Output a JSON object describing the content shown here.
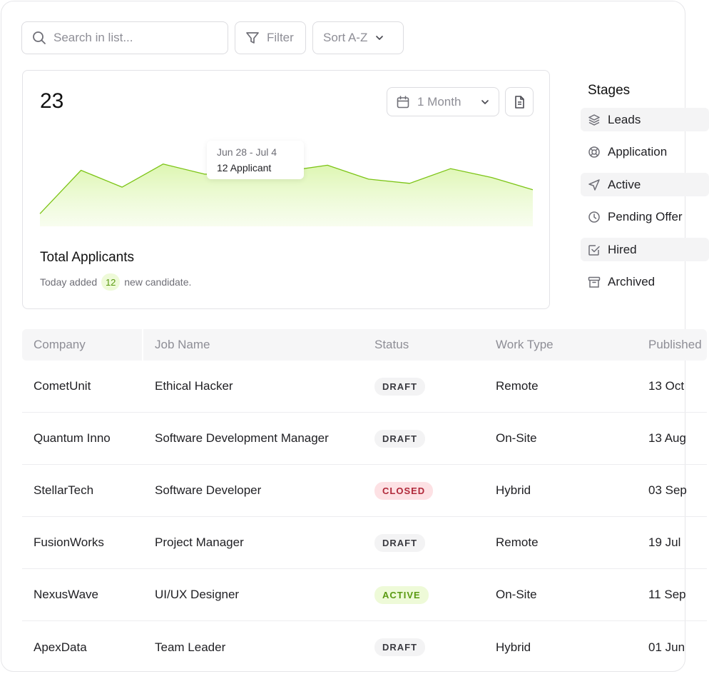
{
  "toolbar": {
    "search_placeholder": "Search in list...",
    "filter_label": "Filter",
    "sort_label": "Sort A-Z"
  },
  "summary": {
    "total": "23",
    "range_label": "1 Month",
    "tooltip_date": "Jun 28 - Jul 4",
    "tooltip_value": "12 Applicant",
    "title": "Total Applicants",
    "sub_prefix": "Today added",
    "sub_count": "12",
    "sub_suffix": "new candidate."
  },
  "chart_data": {
    "type": "area",
    "title": "Total Applicants",
    "series": [
      {
        "name": "Applicants",
        "values": [
          3,
          13.3,
          9.3,
          14.8,
          12.4,
          12.1,
          13.1,
          14.5,
          11.2,
          10.2,
          13.7,
          11.6,
          8.7
        ]
      }
    ],
    "x": [
      0,
      1,
      2,
      3,
      4,
      5,
      6,
      7,
      8,
      9,
      10,
      11,
      12
    ],
    "highlight_index": 5,
    "ylim": [
      0,
      20
    ],
    "grid": false,
    "accent": "#7cc416"
  },
  "stages": {
    "title": "Stages",
    "items": [
      {
        "label": "Leads",
        "icon": "layers-icon"
      },
      {
        "label": "Application",
        "icon": "lifebuoy-icon"
      },
      {
        "label": "Active",
        "icon": "send-icon"
      },
      {
        "label": "Pending Offer",
        "icon": "clock-icon"
      },
      {
        "label": "Hired",
        "icon": "check-square-icon"
      },
      {
        "label": "Archived",
        "icon": "archive-icon"
      }
    ]
  },
  "table": {
    "headers": [
      "Company",
      "Job Name",
      "Status",
      "Work Type",
      "Published"
    ],
    "rows": [
      {
        "company": "CometUnit",
        "job": "Ethical Hacker",
        "status": "DRAFT",
        "work": "Remote",
        "date": "13 Oct"
      },
      {
        "company": "Quantum Inno",
        "job": "Software Development Manager",
        "status": "DRAFT",
        "work": "On-Site",
        "date": "13 Aug"
      },
      {
        "company": "StellarTech",
        "job": "Software Developer",
        "status": "CLOSED",
        "work": "Hybrid",
        "date": "03 Sep"
      },
      {
        "company": "FusionWorks",
        "job": "Project Manager",
        "status": "DRAFT",
        "work": "Remote",
        "date": "19 Jul"
      },
      {
        "company": "NexusWave",
        "job": "UI/UX Designer",
        "status": "ACTIVE",
        "work": "On-Site",
        "date": "11 Sep"
      },
      {
        "company": "ApexData",
        "job": "Team Leader",
        "status": "DRAFT",
        "work": "Hybrid",
        "date": "01 Jun"
      }
    ]
  },
  "colors": {
    "accent": "#7cc416",
    "closed": "#b0293a",
    "active": "#5a9a12"
  }
}
